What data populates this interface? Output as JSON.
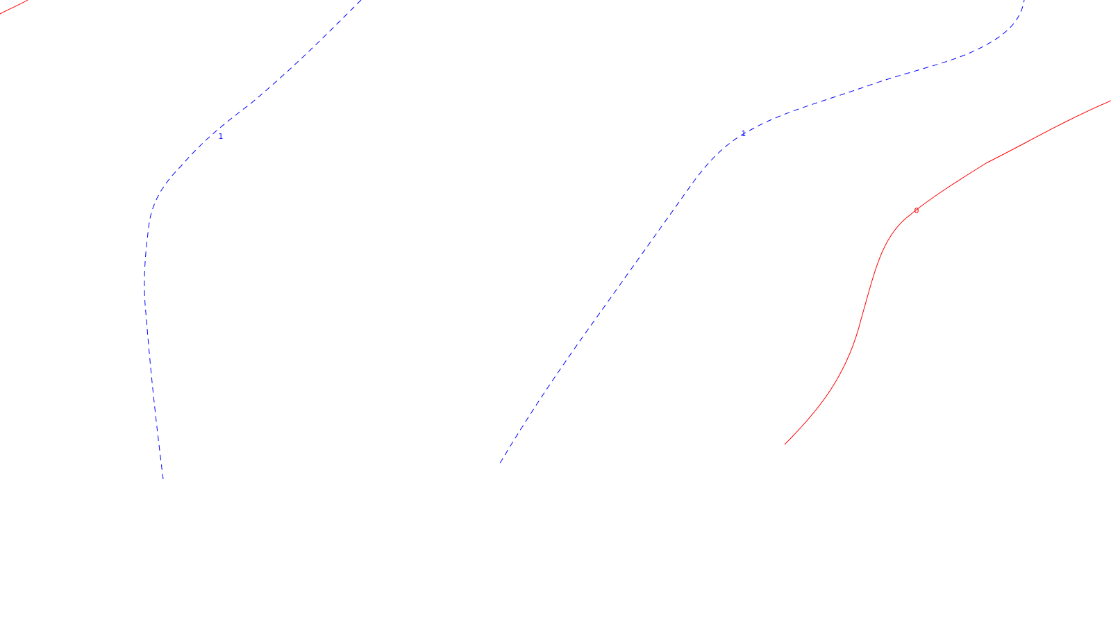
{
  "contour_plot": {
    "colors": {
      "background": "#ffffff",
      "level_1": "#0000ff",
      "level_0": "#ff0000"
    },
    "contours": [
      {
        "level_label": "",
        "style": "solid",
        "color": "#ff0000"
      },
      {
        "level_label": "1",
        "style": "dashed",
        "color": "#0000ff"
      },
      {
        "level_label": "1",
        "style": "dashed",
        "color": "#0000ff"
      },
      {
        "level_label": "0",
        "style": "solid",
        "color": "#ff0000"
      }
    ]
  }
}
